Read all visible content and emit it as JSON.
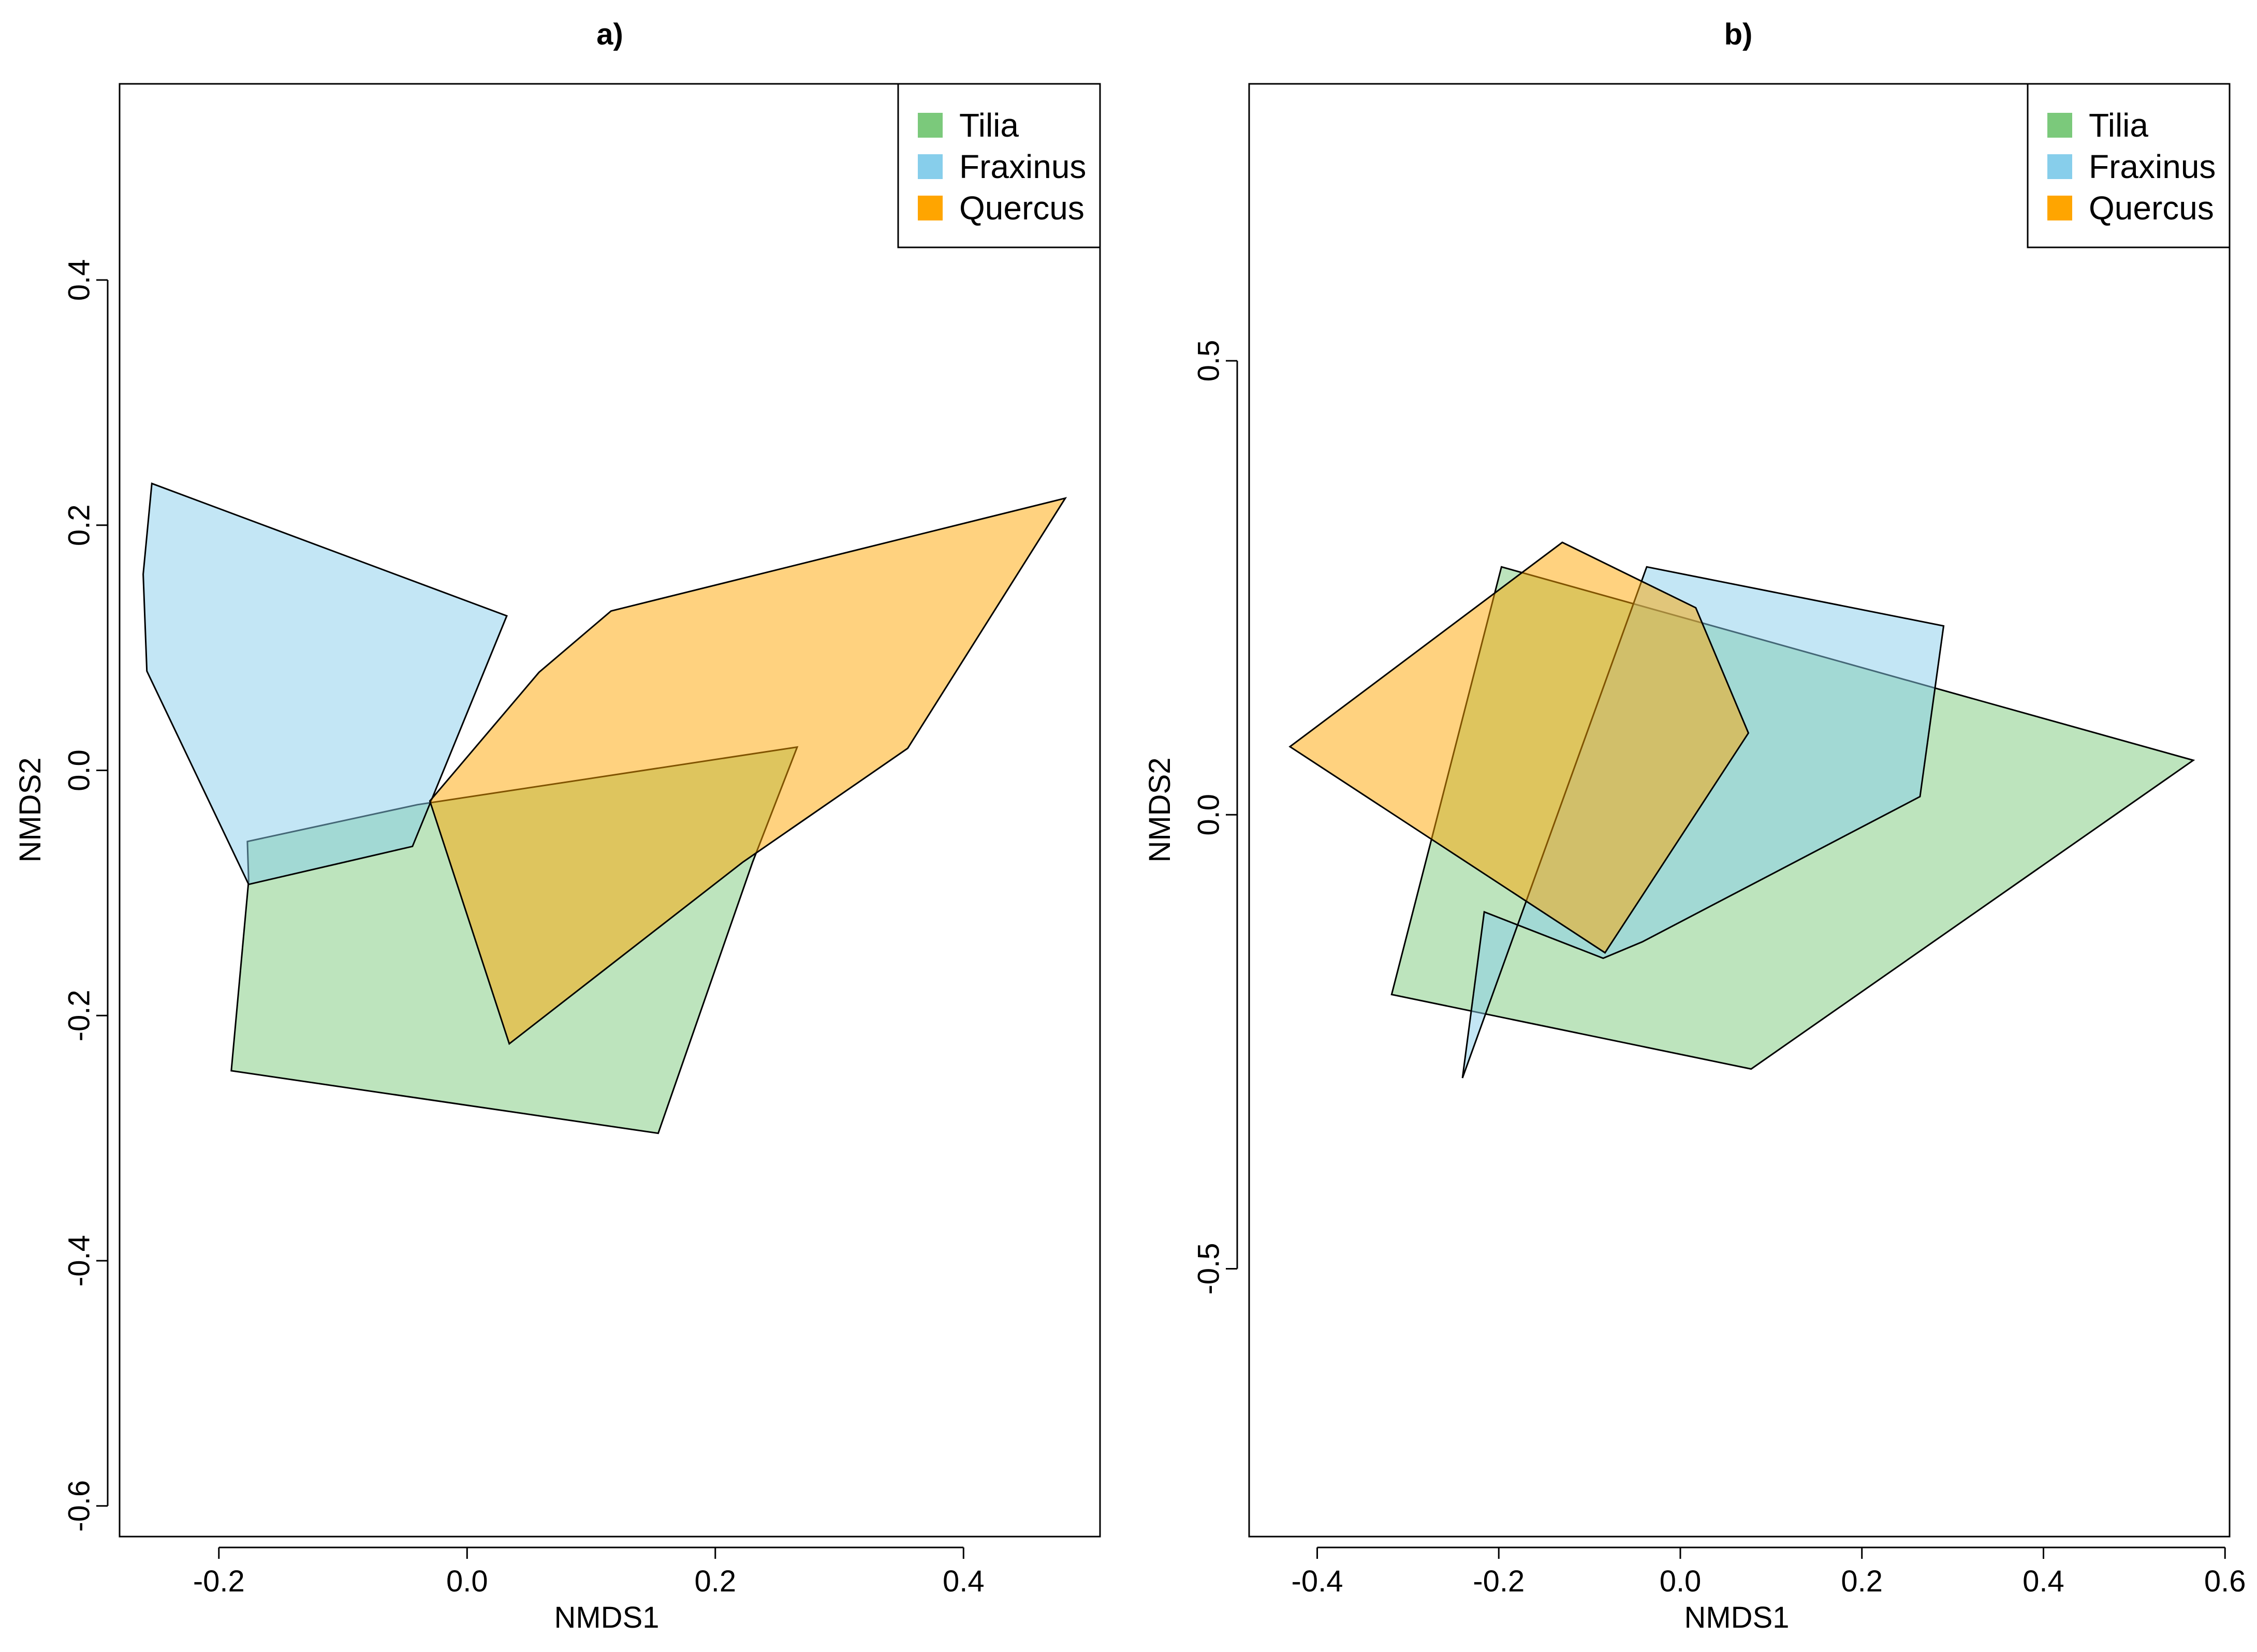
{
  "colors": {
    "Tilia": "#7bc97b",
    "Fraxinus": "#87ceeb",
    "Quercus": "#ffa500"
  },
  "chart_data": [
    {
      "type": "polygon",
      "title": "a)",
      "xlabel": "NMDS1",
      "ylabel": "NMDS2",
      "xlim": [
        -0.28,
        0.51
      ],
      "ylim": [
        -0.625,
        0.56
      ],
      "xticks": [
        -0.2,
        0.0,
        0.2,
        0.4
      ],
      "xtick_labels": [
        "-0.2",
        "0.0",
        "0.2",
        "0.4"
      ],
      "yticks": [
        -0.6,
        -0.4,
        -0.2,
        0.0,
        0.2,
        0.4
      ],
      "ytick_labels": [
        "-0.6",
        "-0.4",
        "-0.2",
        "0.0",
        "0.2",
        "0.4"
      ],
      "legend": {
        "position": "top-right",
        "entries": [
          "Tilia",
          "Fraxinus",
          "Quercus"
        ]
      },
      "series": [
        {
          "name": "Tilia",
          "points": [
            [
              -0.19,
              -0.245
            ],
            [
              0.154,
              -0.296
            ],
            [
              0.23,
              -0.075
            ],
            [
              0.266,
              0.019
            ],
            [
              -0.04,
              -0.028
            ],
            [
              -0.177,
              -0.058
            ],
            [
              -0.176,
              -0.09
            ]
          ]
        },
        {
          "name": "Fraxinus",
          "points": [
            [
              -0.254,
              0.234
            ],
            [
              0.032,
              0.126
            ],
            [
              -0.044,
              -0.062
            ],
            [
              -0.176,
              -0.093
            ],
            [
              -0.258,
              0.081
            ],
            [
              -0.261,
              0.16
            ]
          ]
        },
        {
          "name": "Quercus",
          "points": [
            [
              -0.03,
              -0.025
            ],
            [
              0.034,
              -0.223
            ],
            [
              0.222,
              -0.075
            ],
            [
              0.355,
              0.018
            ],
            [
              0.482,
              0.222
            ],
            [
              0.116,
              0.13
            ],
            [
              0.058,
              0.08
            ]
          ]
        }
      ]
    },
    {
      "type": "polygon",
      "title": "b)",
      "xlabel": "NMDS1",
      "ylabel": "NMDS2",
      "xlim": [
        -0.475,
        0.605
      ],
      "ylim": [
        -0.795,
        0.805
      ],
      "xticks": [
        -0.4,
        -0.2,
        0.0,
        0.2,
        0.4,
        0.6
      ],
      "xtick_labels": [
        "-0.4",
        "-0.2",
        "0.0",
        "0.2",
        "0.4",
        "0.6"
      ],
      "yticks": [
        -0.5,
        0.0,
        0.5
      ],
      "ytick_labels": [
        "-0.5",
        "0.0",
        "0.5"
      ],
      "legend": {
        "position": "top-right",
        "entries": [
          "Tilia",
          "Fraxinus",
          "Quercus"
        ]
      },
      "series": [
        {
          "name": "Tilia",
          "points": [
            [
              -0.197,
              0.273
            ],
            [
              0.565,
              0.06
            ],
            [
              0.078,
              -0.28
            ],
            [
              -0.318,
              -0.198
            ]
          ]
        },
        {
          "name": "Fraxinus",
          "points": [
            [
              -0.037,
              0.273
            ],
            [
              0.29,
              0.208
            ],
            [
              0.264,
              0.02
            ],
            [
              -0.042,
              -0.14
            ],
            [
              -0.085,
              -0.158
            ],
            [
              -0.216,
              -0.107
            ],
            [
              -0.24,
              -0.29
            ]
          ]
        },
        {
          "name": "Quercus",
          "points": [
            [
              -0.13,
              0.3
            ],
            [
              0.017,
              0.228
            ],
            [
              0.075,
              0.09
            ],
            [
              -0.083,
              -0.152
            ],
            [
              -0.43,
              0.075
            ]
          ]
        }
      ]
    }
  ]
}
